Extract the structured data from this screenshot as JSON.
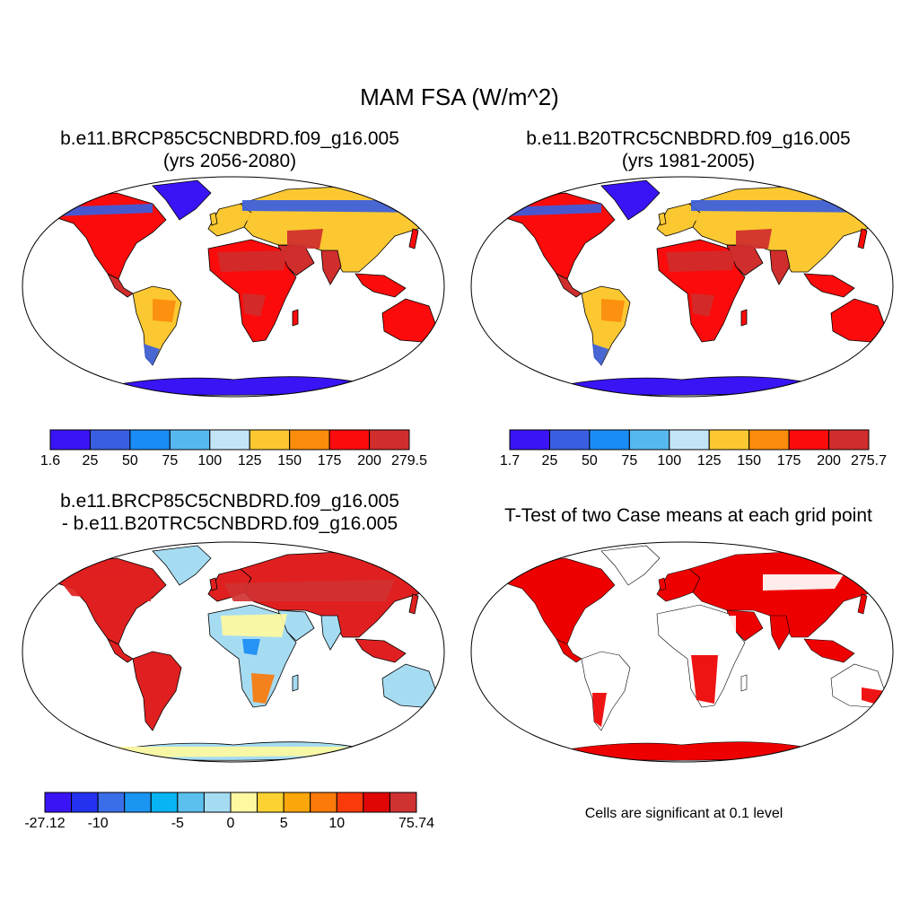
{
  "main_title": "MAM FSA (W/m^2)",
  "panels": [
    {
      "title_line1": "b.e11.BRCP85C5CNBDRD.f09_g16.005",
      "title_line2": "(yrs 2056-2080)",
      "colorbar": {
        "labels": [
          "1.6",
          "25",
          "50",
          "75",
          "100",
          "125",
          "150",
          "175",
          "200",
          "279.5"
        ],
        "colors": [
          "#3a14f5",
          "#3a5ee0",
          "#1a8cf5",
          "#57b8f0",
          "#c3e4f7",
          "#fbc832",
          "#fb8c0c",
          "#fb0b0b",
          "#d02d2d"
        ]
      }
    },
    {
      "title_line1": "b.e11.B20TRC5CNBDRD.f09_g16.005",
      "title_line2": "(yrs 1981-2005)",
      "colorbar": {
        "labels": [
          "1.7",
          "25",
          "50",
          "75",
          "100",
          "125",
          "150",
          "175",
          "200",
          "275.7"
        ],
        "colors": [
          "#3a14f5",
          "#3a5ee0",
          "#1a8cf5",
          "#57b8f0",
          "#c3e4f7",
          "#fbc832",
          "#fb8c0c",
          "#fb0b0b",
          "#d02d2d"
        ]
      }
    },
    {
      "title_line1": "b.e11.BRCP85C5CNBDRD.f09_g16.005",
      "title_line2": "- b.e11.B20TRC5CNBDRD.f09_g16.005",
      "colorbar": {
        "labels": [
          "-27.12",
          "-10",
          "-5",
          "0",
          "5",
          "10",
          "75.74"
        ],
        "colors": [
          "#3a14f5",
          "#2432f0",
          "#3a6ee8",
          "#1a95f0",
          "#08b4f2",
          "#5cc0ee",
          "#a6dcf2",
          "#fef8a0",
          "#fbd232",
          "#fba60a",
          "#fb7a0a",
          "#fb3a0a",
          "#e00606",
          "#d03232"
        ]
      }
    },
    {
      "title_line1": "T-Test of two Case means at each grid point",
      "note": "Cells are significant at 0.1 level"
    }
  ],
  "fill_colors": {
    "antarctica_abs": "#3a14f5",
    "arctic_abs": "#3a5ee0",
    "tropics_abs": "#fb0b0b",
    "midlat_abs": "#fbc832",
    "desert_abs": "#d02d2d",
    "diff_warm": "#e02020",
    "diff_cool": "#a6dcf2",
    "ttest": "#ee0000"
  }
}
